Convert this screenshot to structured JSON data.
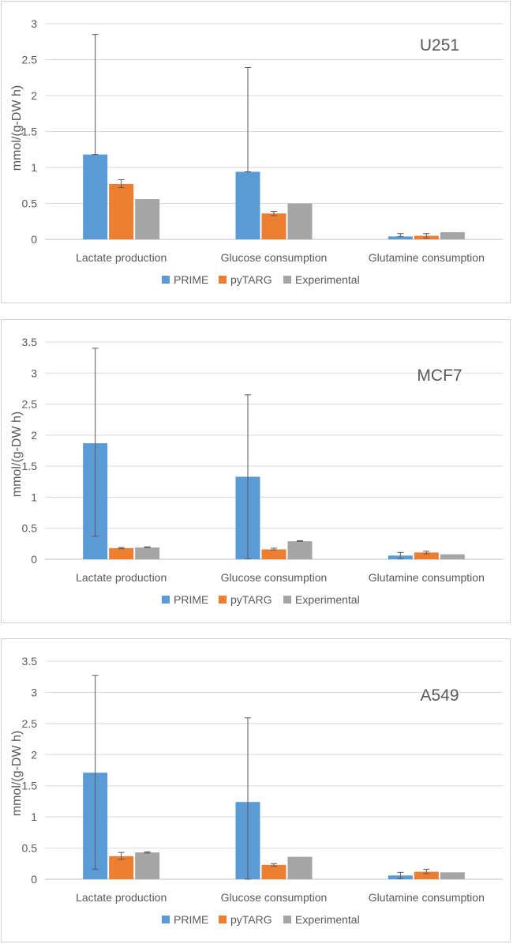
{
  "chart_data": [
    {
      "type": "bar",
      "title": "U251",
      "ylabel": "mmol/(g-DW h)",
      "xlabel": "",
      "ylim": [
        0,
        3
      ],
      "yticks": [
        "0",
        "0.5",
        "1",
        "1.5",
        "2",
        "2.5",
        "3"
      ],
      "categories": [
        "Lactate production",
        "Glucose consumption",
        "Glutamine consumption"
      ],
      "series": [
        {
          "name": "PRIME",
          "color": "#5b9bd5",
          "values": [
            1.18,
            0.94,
            0.04
          ],
          "err_low": [
            1.18,
            0.94,
            0.04
          ],
          "err_high": [
            2.85,
            2.39,
            0.08
          ]
        },
        {
          "name": "pyTARG",
          "color": "#ed7d31",
          "values": [
            0.77,
            0.36,
            0.05
          ],
          "err_low": [
            0.72,
            0.33,
            0.02
          ],
          "err_high": [
            0.83,
            0.39,
            0.08
          ]
        },
        {
          "name": "Experimental",
          "color": "#a5a5a5",
          "values": [
            0.56,
            0.5,
            0.1
          ],
          "err_low": [
            0.56,
            0.5,
            0.1
          ],
          "err_high": [
            0.56,
            0.5,
            0.1
          ]
        }
      ],
      "legend": "bottom",
      "grid": true
    },
    {
      "type": "bar",
      "title": "MCF7",
      "ylabel": "mmol/(g-DW h)",
      "xlabel": "",
      "ylim": [
        0,
        3.5
      ],
      "yticks": [
        "0",
        "0.5",
        "1",
        "1.5",
        "2",
        "2.5",
        "3",
        "3.5"
      ],
      "categories": [
        "Lactate production",
        "Glucose consumption",
        "Glutamine consumption"
      ],
      "series": [
        {
          "name": "PRIME",
          "color": "#5b9bd5",
          "values": [
            1.87,
            1.33,
            0.06
          ],
          "err_low": [
            0.37,
            0.01,
            0.01
          ],
          "err_high": [
            3.4,
            2.65,
            0.11
          ]
        },
        {
          "name": "pyTARG",
          "color": "#ed7d31",
          "values": [
            0.18,
            0.16,
            0.11
          ],
          "err_low": [
            0.17,
            0.15,
            0.09
          ],
          "err_high": [
            0.19,
            0.18,
            0.13
          ]
        },
        {
          "name": "Experimental",
          "color": "#a5a5a5",
          "values": [
            0.19,
            0.29,
            0.08
          ],
          "err_low": [
            0.19,
            0.29,
            0.08
          ],
          "err_high": [
            0.2,
            0.3,
            0.08
          ]
        }
      ],
      "legend": "bottom",
      "grid": true
    },
    {
      "type": "bar",
      "title": "A549",
      "ylabel": "mmol/(g-DW h)",
      "xlabel": "",
      "ylim": [
        0,
        3.5
      ],
      "yticks": [
        "0",
        "0.5",
        "1",
        "1.5",
        "2",
        "2.5",
        "3",
        "3.5"
      ],
      "categories": [
        "Lactate production",
        "Glucose consumption",
        "Glutamine consumption"
      ],
      "series": [
        {
          "name": "PRIME",
          "color": "#5b9bd5",
          "values": [
            1.71,
            1.24,
            0.06
          ],
          "err_low": [
            0.16,
            0.0,
            0.01
          ],
          "err_high": [
            3.27,
            2.59,
            0.11
          ]
        },
        {
          "name": "pyTARG",
          "color": "#ed7d31",
          "values": [
            0.37,
            0.23,
            0.12
          ],
          "err_low": [
            0.32,
            0.21,
            0.09
          ],
          "err_high": [
            0.43,
            0.25,
            0.16
          ]
        },
        {
          "name": "Experimental",
          "color": "#a5a5a5",
          "values": [
            0.43,
            0.36,
            0.11
          ],
          "err_low": [
            0.42,
            0.36,
            0.11
          ],
          "err_high": [
            0.44,
            0.36,
            0.11
          ]
        }
      ],
      "legend": "bottom",
      "grid": true
    }
  ]
}
